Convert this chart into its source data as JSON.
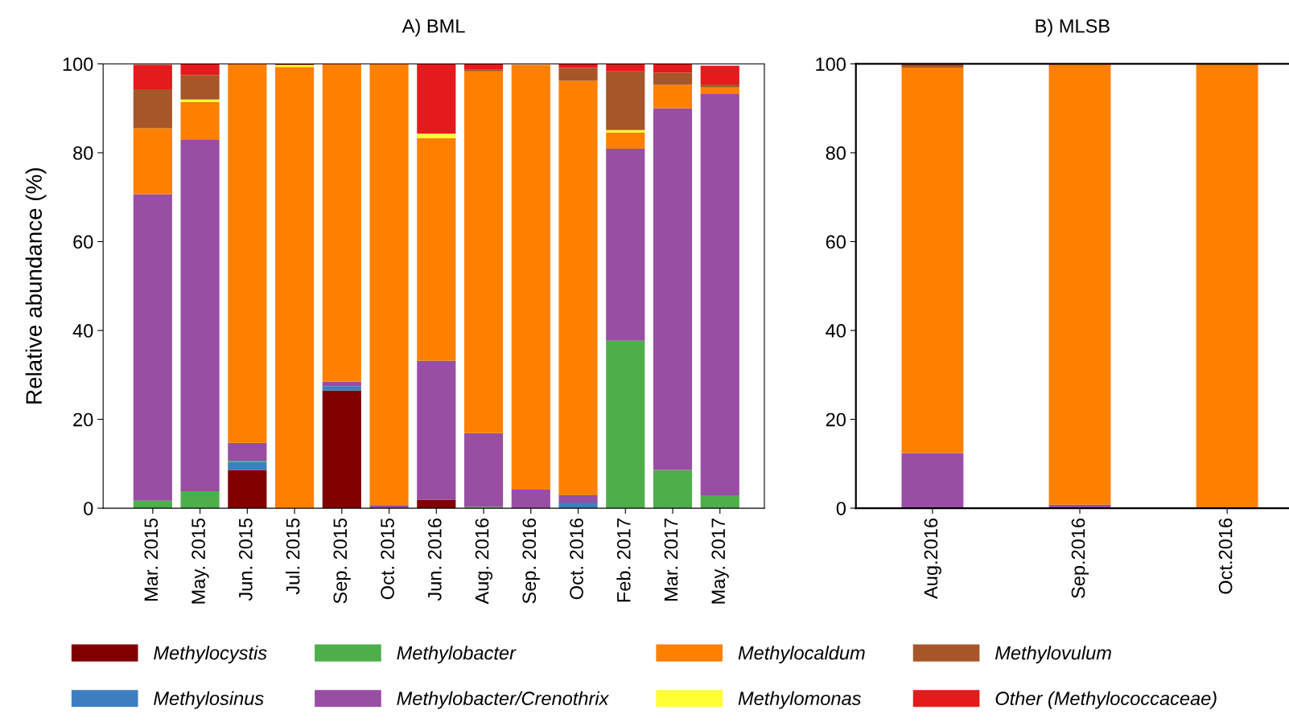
{
  "chart_data": [
    {
      "type": "bar",
      "title": "A) BML",
      "ylabel": "Relative abundance (%)",
      "stacked": true,
      "legend": "bottom",
      "ylim": [
        0,
        100
      ],
      "yticks": [
        0,
        20,
        40,
        60,
        80,
        100
      ],
      "categories": [
        "Mar. 2015",
        "May. 2015",
        "Jun. 2015",
        "Jul. 2015",
        "Sep. 2015",
        "Oct. 2015",
        "Jun. 2016",
        "Aug. 2016",
        "Sep. 2016",
        "Oct. 2016",
        "Feb. 2017",
        "Mar. 2017",
        "May. 2017"
      ],
      "series": [
        {
          "name": "Methylocystis",
          "color": "#800000",
          "values": [
            null,
            0,
            8.6,
            0,
            26.5,
            0,
            1.9,
            0,
            0,
            0,
            0,
            0,
            0
          ]
        },
        {
          "name": "Methylosinus",
          "color": "#3d7ebf",
          "values": [
            0,
            0,
            1.8,
            0,
            1.0,
            0,
            0,
            0,
            0,
            1.3,
            0,
            0,
            null
          ]
        },
        {
          "name": "Methylobacter",
          "color": "#4daf4a",
          "values": [
            1.7,
            3.8,
            0.3,
            0,
            0,
            0,
            0,
            0.3,
            0,
            0,
            37.7,
            8.6,
            2.9
          ]
        },
        {
          "name": "Methylobacter/Crenothrix",
          "color": "#984ea3",
          "values": [
            69.0,
            79.1,
            4.0,
            0,
            1.0,
            0.7,
            31.3,
            16.6,
            4.2,
            1.6,
            43.2,
            81.4,
            90.3
          ]
        },
        {
          "name": "Methylocaldum",
          "color": "#ff8000",
          "values": [
            14.8,
            8.5,
            85.3,
            99.3,
            71.5,
            99.3,
            50.1,
            81.4,
            95.6,
            93.3,
            3.6,
            5.3,
            1.5
          ]
        },
        {
          "name": "Methylomonas",
          "color": "#ffff33",
          "values": [
            0,
            0.6,
            0,
            0.4,
            0,
            0,
            1.0,
            0,
            0,
            0,
            0.6,
            0,
            0
          ]
        },
        {
          "name": "Methylovulum",
          "color": "#a65628",
          "values": [
            8.8,
            5.5,
            0,
            0.3,
            0,
            0,
            0,
            0.4,
            null,
            2.9,
            13.2,
            2.7,
            0.7
          ]
        },
        {
          "name": "Other (Methylococcaceae)",
          "color": "#e41a1c",
          "values": [
            5.5,
            2.5,
            0,
            0,
            0,
            0,
            15.7,
            1.3,
            0,
            0.9,
            1.7,
            2.0,
            4.2
          ]
        }
      ]
    },
    {
      "type": "bar",
      "title": "B) MLSB",
      "stacked": true,
      "ylim": [
        0,
        100
      ],
      "yticks": [
        0,
        20,
        40,
        60,
        80,
        100
      ],
      "categories": [
        "Aug.2016",
        "Sep.2016",
        "Oct.2016"
      ],
      "series": [
        {
          "color": "#984ea3",
          "values": [
            12.4,
            0.8,
            0
          ]
        },
        {
          "color": "#ff8000",
          "values": [
            86.8,
            99.2,
            100
          ]
        },
        {
          "color": "#a65628",
          "values": [
            0.8,
            0,
            0
          ]
        }
      ]
    }
  ]
}
